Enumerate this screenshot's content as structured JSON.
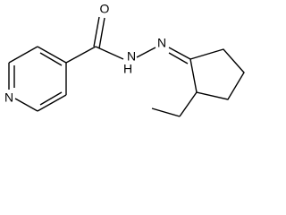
{
  "atoms": {
    "oxygen": "O",
    "amide_n": "N",
    "amide_h": "H",
    "imine_n": "N",
    "pyridine_n": "N"
  }
}
